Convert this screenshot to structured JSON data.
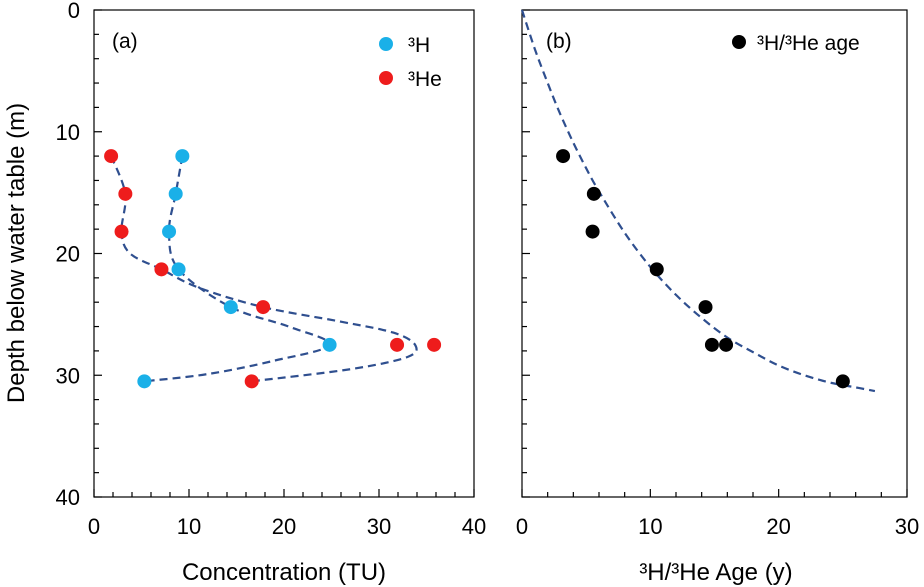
{
  "chart_data": [
    {
      "panel": "(a)",
      "type": "scatter",
      "xlabel": "Concentration (TU)",
      "ylabel": "Depth below water table (m)",
      "xlim": [
        0,
        40
      ],
      "ylim": [
        40,
        0
      ],
      "xticks": [
        "0",
        "10",
        "20",
        "30",
        "40"
      ],
      "yticks": [
        "0",
        "10",
        "20",
        "30",
        "40"
      ],
      "legend_position": "top-right",
      "series": [
        {
          "name": "³H",
          "color": "#1ab0e8",
          "points": [
            [
              9.3,
              12.0
            ],
            [
              8.6,
              15.1
            ],
            [
              7.9,
              18.2
            ],
            [
              8.9,
              21.3
            ],
            [
              14.4,
              24.4
            ],
            [
              24.8,
              27.5
            ],
            [
              5.3,
              30.5
            ]
          ],
          "fit_line": [
            [
              9.3,
              12.0
            ],
            [
              8.6,
              15.1
            ],
            [
              7.9,
              18.2
            ],
            [
              8.9,
              21.3
            ],
            [
              14.4,
              24.4
            ],
            [
              20.5,
              26.0
            ],
            [
              24.8,
              27.5
            ],
            [
              19.0,
              28.8
            ],
            [
              12.0,
              29.9
            ],
            [
              5.3,
              30.5
            ]
          ]
        },
        {
          "name": "³He",
          "color": "#ee1c1c",
          "points": [
            [
              1.8,
              12.0
            ],
            [
              3.3,
              15.1
            ],
            [
              2.9,
              18.2
            ],
            [
              7.1,
              21.3
            ],
            [
              17.8,
              24.4
            ],
            [
              31.9,
              27.5
            ],
            [
              35.8,
              27.5
            ],
            [
              16.6,
              30.5
            ]
          ],
          "fit_line": [
            [
              1.8,
              12.0
            ],
            [
              3.3,
              15.1
            ],
            [
              2.9,
              18.2
            ],
            [
              3.8,
              20.0
            ],
            [
              7.1,
              21.3
            ],
            [
              11.0,
              22.8
            ],
            [
              17.8,
              24.4
            ],
            [
              26.0,
              25.6
            ],
            [
              31.5,
              26.5
            ],
            [
              33.8,
              27.5
            ],
            [
              33.0,
              28.5
            ],
            [
              27.0,
              29.5
            ],
            [
              16.6,
              30.5
            ]
          ]
        }
      ]
    },
    {
      "panel": "(b)",
      "type": "scatter",
      "xlabel": "³H/³He Age (y)",
      "xlim": [
        0,
        30
      ],
      "ylim": [
        40,
        0
      ],
      "xticks": [
        "0",
        "10",
        "20",
        "30"
      ],
      "legend_position": "top-right",
      "series": [
        {
          "name": "³H/³He age",
          "color": "#000000",
          "points": [
            [
              3.2,
              12.0
            ],
            [
              5.6,
              15.1
            ],
            [
              5.5,
              18.2
            ],
            [
              10.5,
              21.3
            ],
            [
              14.3,
              24.4
            ],
            [
              14.8,
              27.5
            ],
            [
              15.9,
              27.5
            ],
            [
              25.0,
              30.5
            ]
          ],
          "fit_line": [
            [
              0.0,
              0.0
            ],
            [
              1.0,
              3.2
            ],
            [
              2.0,
              6.0
            ],
            [
              3.0,
              8.6
            ],
            [
              4.0,
              10.9
            ],
            [
              5.0,
              13.0
            ],
            [
              6.0,
              14.9
            ],
            [
              8.0,
              18.3
            ],
            [
              10.0,
              21.1
            ],
            [
              12.0,
              23.4
            ],
            [
              14.0,
              25.3
            ],
            [
              16.0,
              26.9
            ],
            [
              18.0,
              28.1
            ],
            [
              20.0,
              29.2
            ],
            [
              22.0,
              30.0
            ],
            [
              24.0,
              30.6
            ],
            [
              26.0,
              31.0
            ],
            [
              27.5,
              31.3
            ]
          ]
        }
      ]
    }
  ]
}
